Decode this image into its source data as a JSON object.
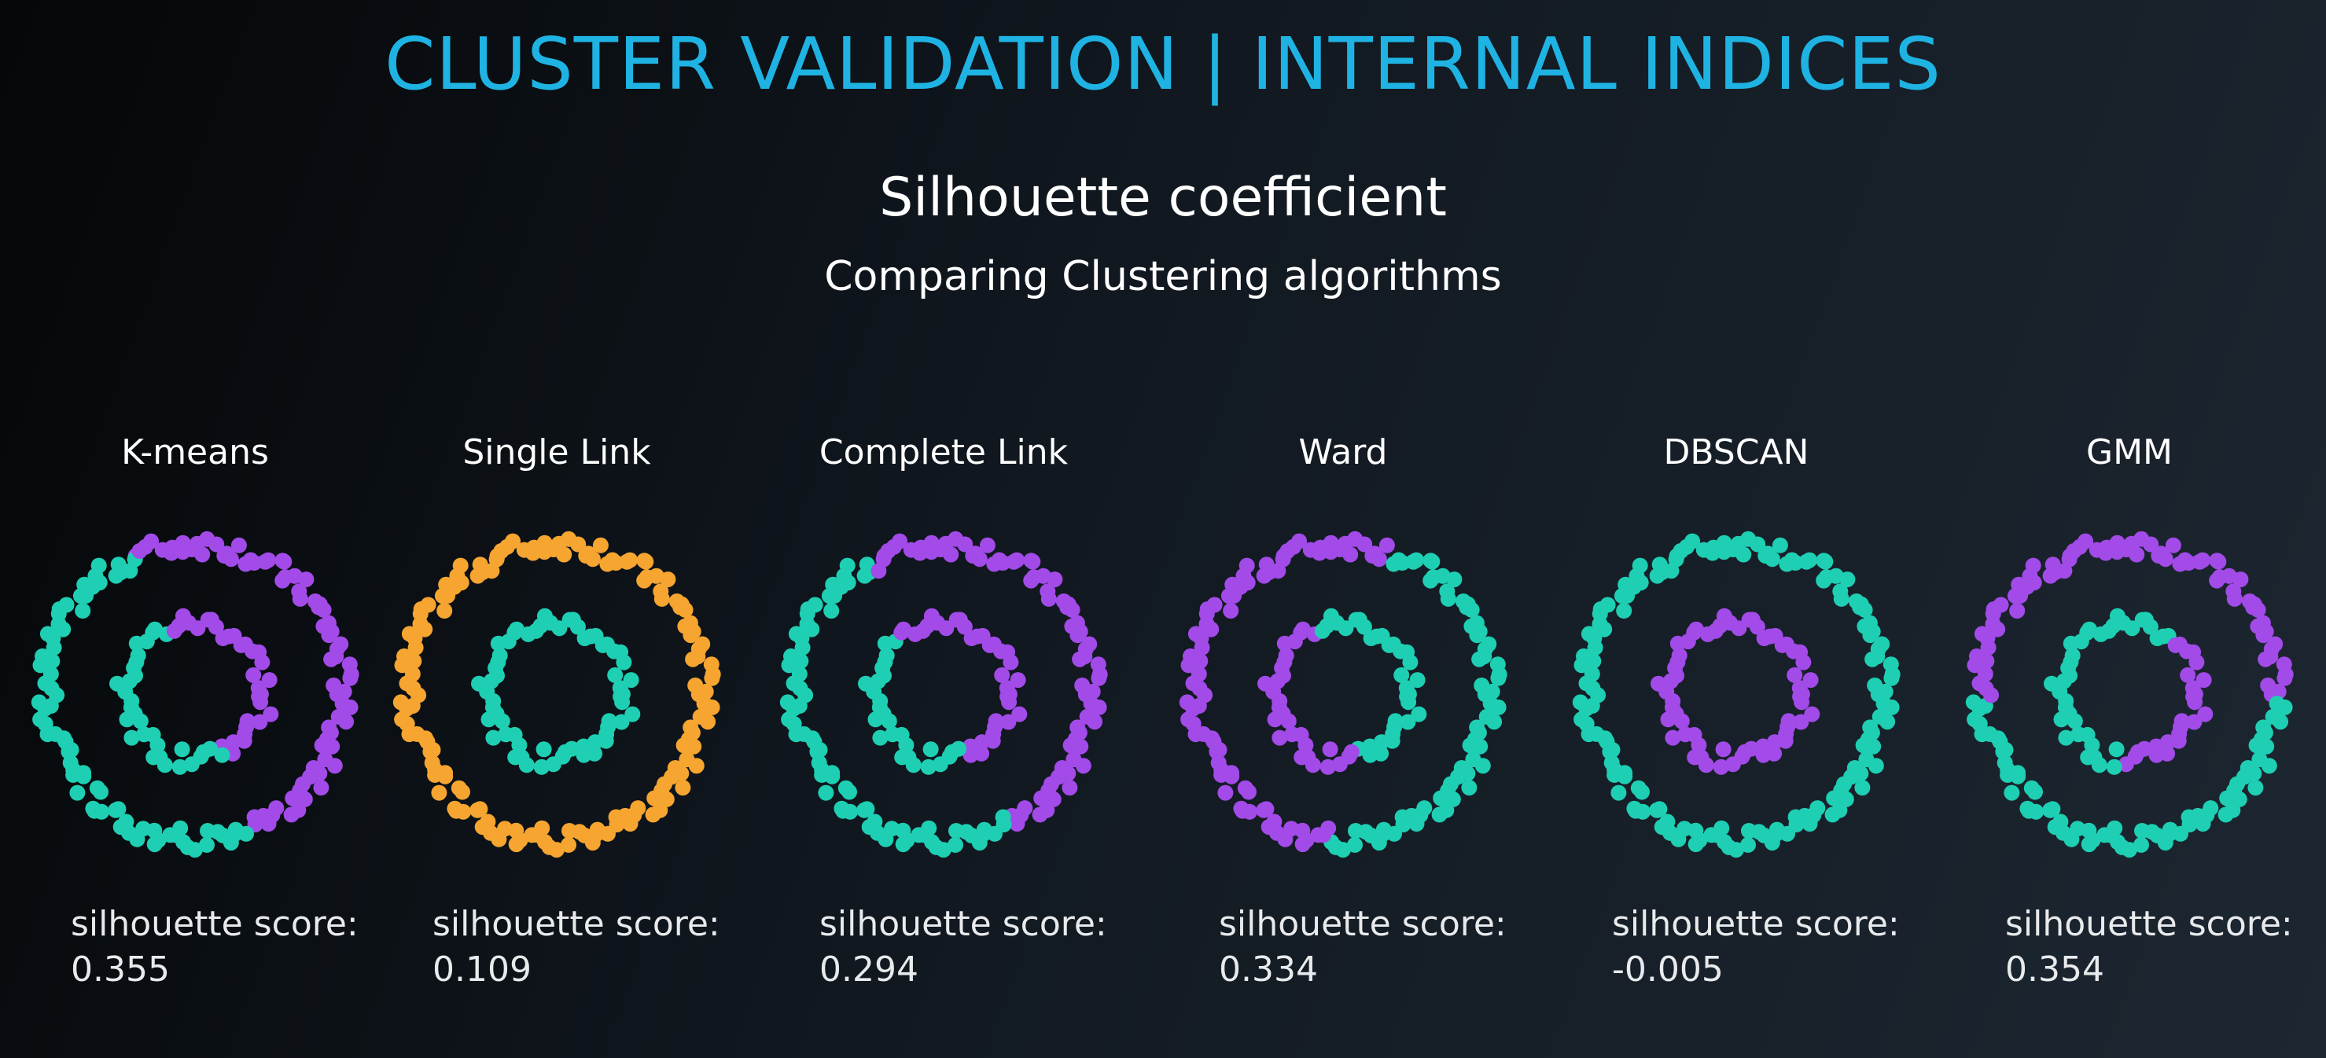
{
  "header": {
    "title": "CLUSTER VALIDATION | INTERNAL INDICES",
    "subtitle": "Silhouette coefficient",
    "subtitle2": "Comparing Clustering algorithms"
  },
  "colors": {
    "title": "#1fb3e3",
    "cluster_teal": "#1ecfb3",
    "cluster_purple": "#a24be8",
    "cluster_orange": "#f5a530"
  },
  "score_label": "silhouette score:",
  "panels": [
    {
      "title": "K-means",
      "score": "0.355",
      "scheme": "halves"
    },
    {
      "title": "Single Link",
      "score": "0.109",
      "scheme": "orange-ring"
    },
    {
      "title": "Complete Link",
      "score": "0.294",
      "scheme": "complete"
    },
    {
      "title": "Ward",
      "score": "0.334",
      "scheme": "ward"
    },
    {
      "title": "DBSCAN",
      "score": "-0.005",
      "scheme": "dbscan"
    },
    {
      "title": "GMM",
      "score": "0.354",
      "scheme": "gmm"
    }
  ]
}
